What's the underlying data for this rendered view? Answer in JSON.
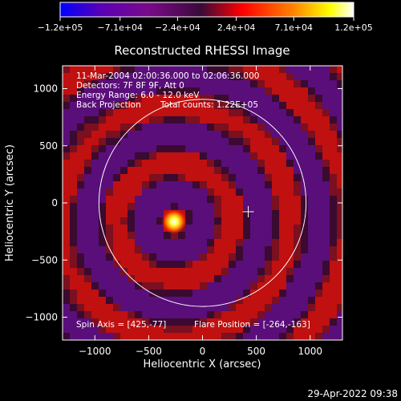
{
  "chart_data": {
    "type": "heatmap",
    "title": "Reconstructed RHESSI Image",
    "xlabel": "Heliocentric X (arcsec)",
    "ylabel": "Heliocentric Y (arcsec)",
    "xlim": [
      -1300,
      1300
    ],
    "ylim": [
      -1200,
      1200
    ],
    "xticks": [
      -1000,
      -500,
      0,
      500,
      1000
    ],
    "xtick_labels": [
      "−1000",
      "−500",
      "0",
      "500",
      "1000"
    ],
    "yticks": [
      1000,
      500,
      0,
      -500,
      -1000
    ],
    "ytick_labels": [
      "1000",
      "500",
      "0",
      "−500",
      "−1000"
    ],
    "colorbar": {
      "range": [
        -120000,
        120000
      ],
      "ticks": [
        -120000,
        -71000,
        -24000,
        24000,
        71000,
        120000
      ],
      "tick_labels": [
        "−1.2e+05",
        "−7.1e+04",
        "−2.4e+04",
        "2.4e+04",
        "7.1e+04",
        "1.2e+05"
      ],
      "colormap": [
        "#0000ff",
        "#5a00b5",
        "#7a0a8a",
        "#4a0a4a",
        "#ff0000",
        "#ff8800",
        "#ffff00",
        "#ffffff"
      ]
    },
    "source": {
      "x": -264,
      "y": -163,
      "peak": 120000
    },
    "solar_disk": {
      "center": [
        0,
        0
      ],
      "radius": 962
    },
    "cross_marker": {
      "x": 425,
      "y": -77
    },
    "grid": false
  },
  "annotations": {
    "time_range": "11-Mar-2004 02:00:36.000 to 02:06:36.000",
    "detectors": "Detectors: 7F 8F 9F, Att 0",
    "energy_range": "Energy Range: 6.0 - 12.0 keV",
    "back_projection": "Back Projection",
    "total_counts": "Total counts: 1.22E+05",
    "spin_axis": "Spin Axis = [425,-77]",
    "flare_position": "Flare Position = [-264,-163]"
  },
  "footer": {
    "timestamp": "29-Apr-2022 09:38"
  },
  "colors": {
    "background": "#000000",
    "foreground": "#ffffff"
  }
}
